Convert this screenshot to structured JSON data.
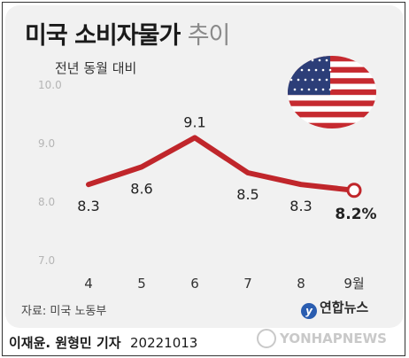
{
  "header": {
    "title_bold": "미국 소비자물가",
    "title_light": "추이",
    "subtitle": "전년 동월 대비"
  },
  "flag": {
    "icon": "us-flag-icon"
  },
  "chart_data": {
    "type": "line",
    "categories": [
      "4",
      "5",
      "6",
      "7",
      "8",
      "9월"
    ],
    "values": [
      8.3,
      8.6,
      9.1,
      8.5,
      8.3,
      8.2
    ],
    "data_labels": [
      "8.3",
      "8.6",
      "9.1",
      "8.5",
      "8.3",
      "8.2%"
    ],
    "yticks": [
      "10.0",
      "9.0",
      "8.0",
      "7.0"
    ],
    "ylim": [
      7.0,
      10.0
    ],
    "line_color": "#c0262b",
    "grid": false
  },
  "footer": {
    "source": "자료: 미국 노동부",
    "agency": "연합뉴스",
    "credit": "이재윤. 원형민 기자",
    "date": "20221013",
    "watermark": "YONHAPNEWS"
  }
}
